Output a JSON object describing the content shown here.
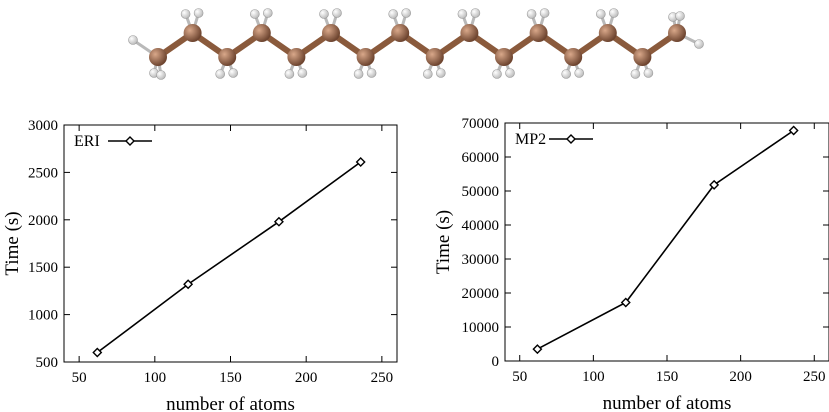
{
  "colors": {
    "carbon": "#8a5a3c",
    "carbon_highlight": "#d9a88a",
    "hydrogen": "#f2f2f2",
    "bond": "#8a5a3c",
    "line": "#000000"
  },
  "molecule": {
    "carbon_count": 16
  },
  "chart_data": [
    {
      "type": "line",
      "xlabel": "number of atoms",
      "ylabel": "Time (s)",
      "xlim": [
        40,
        260
      ],
      "ylim": [
        500,
        3000
      ],
      "xticks": [
        "50",
        "100",
        "150",
        "200",
        "250"
      ],
      "yticks": [
        "500",
        "1000",
        "1500",
        "2000",
        "2500",
        "3000"
      ],
      "legend_position": "top-left",
      "series": [
        {
          "name": "ERI",
          "x": [
            62,
            122,
            182,
            236
          ],
          "values": [
            600,
            1320,
            1980,
            2610
          ],
          "marker": "diamond"
        }
      ]
    },
    {
      "type": "line",
      "xlabel": "number of atoms",
      "ylabel": "Time (s)",
      "xlim": [
        40,
        260
      ],
      "ylim": [
        0,
        70000
      ],
      "xticks": [
        "50",
        "100",
        "150",
        "200",
        "250"
      ],
      "yticks": [
        "0",
        "10000",
        "20000",
        "30000",
        "40000",
        "50000",
        "60000",
        "70000"
      ],
      "legend_position": "top-left",
      "series": [
        {
          "name": "MP2",
          "x": [
            62,
            122,
            182,
            236
          ],
          "values": [
            3500,
            17200,
            51800,
            67800
          ],
          "marker": "diamond"
        }
      ]
    }
  ]
}
